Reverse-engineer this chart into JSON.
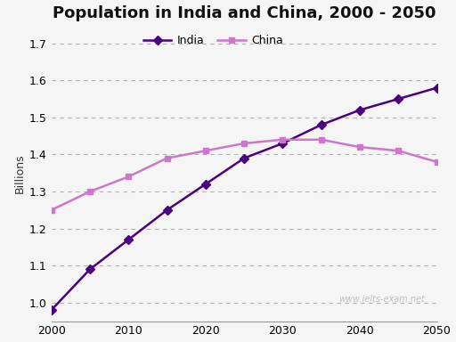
{
  "title": "Population in India and China, 2000 - 2050",
  "xlabel": "",
  "ylabel": "Billions",
  "watermark": "www.ielts-exam.net",
  "india": {
    "label": "India",
    "color": "#4a0080",
    "marker": "D",
    "x": [
      2000,
      2005,
      2010,
      2015,
      2020,
      2025,
      2030,
      2035,
      2040,
      2045,
      2050
    ],
    "y": [
      0.98,
      1.09,
      1.17,
      1.25,
      1.32,
      1.39,
      1.43,
      1.48,
      1.52,
      1.55,
      1.58
    ]
  },
  "china": {
    "label": "China",
    "color": "#cc77cc",
    "marker": "s",
    "x": [
      2000,
      2005,
      2010,
      2015,
      2020,
      2025,
      2030,
      2035,
      2040,
      2045,
      2050
    ],
    "y": [
      1.25,
      1.3,
      1.34,
      1.39,
      1.41,
      1.43,
      1.44,
      1.44,
      1.42,
      1.41,
      1.38
    ]
  },
  "xlim": [
    2000,
    2050
  ],
  "ylim": [
    0.95,
    1.75
  ],
  "yticks": [
    1.0,
    1.1,
    1.2,
    1.3,
    1.4,
    1.5,
    1.6,
    1.7
  ],
  "xticks": [
    2000,
    2010,
    2020,
    2030,
    2040,
    2050
  ],
  "background_color": "#f5f5f5",
  "plot_bg_color": "#f5f5f5",
  "grid_color": "#aaaaaa",
  "title_fontsize": 13,
  "label_fontsize": 9,
  "tick_fontsize": 9,
  "legend_fontsize": 9
}
